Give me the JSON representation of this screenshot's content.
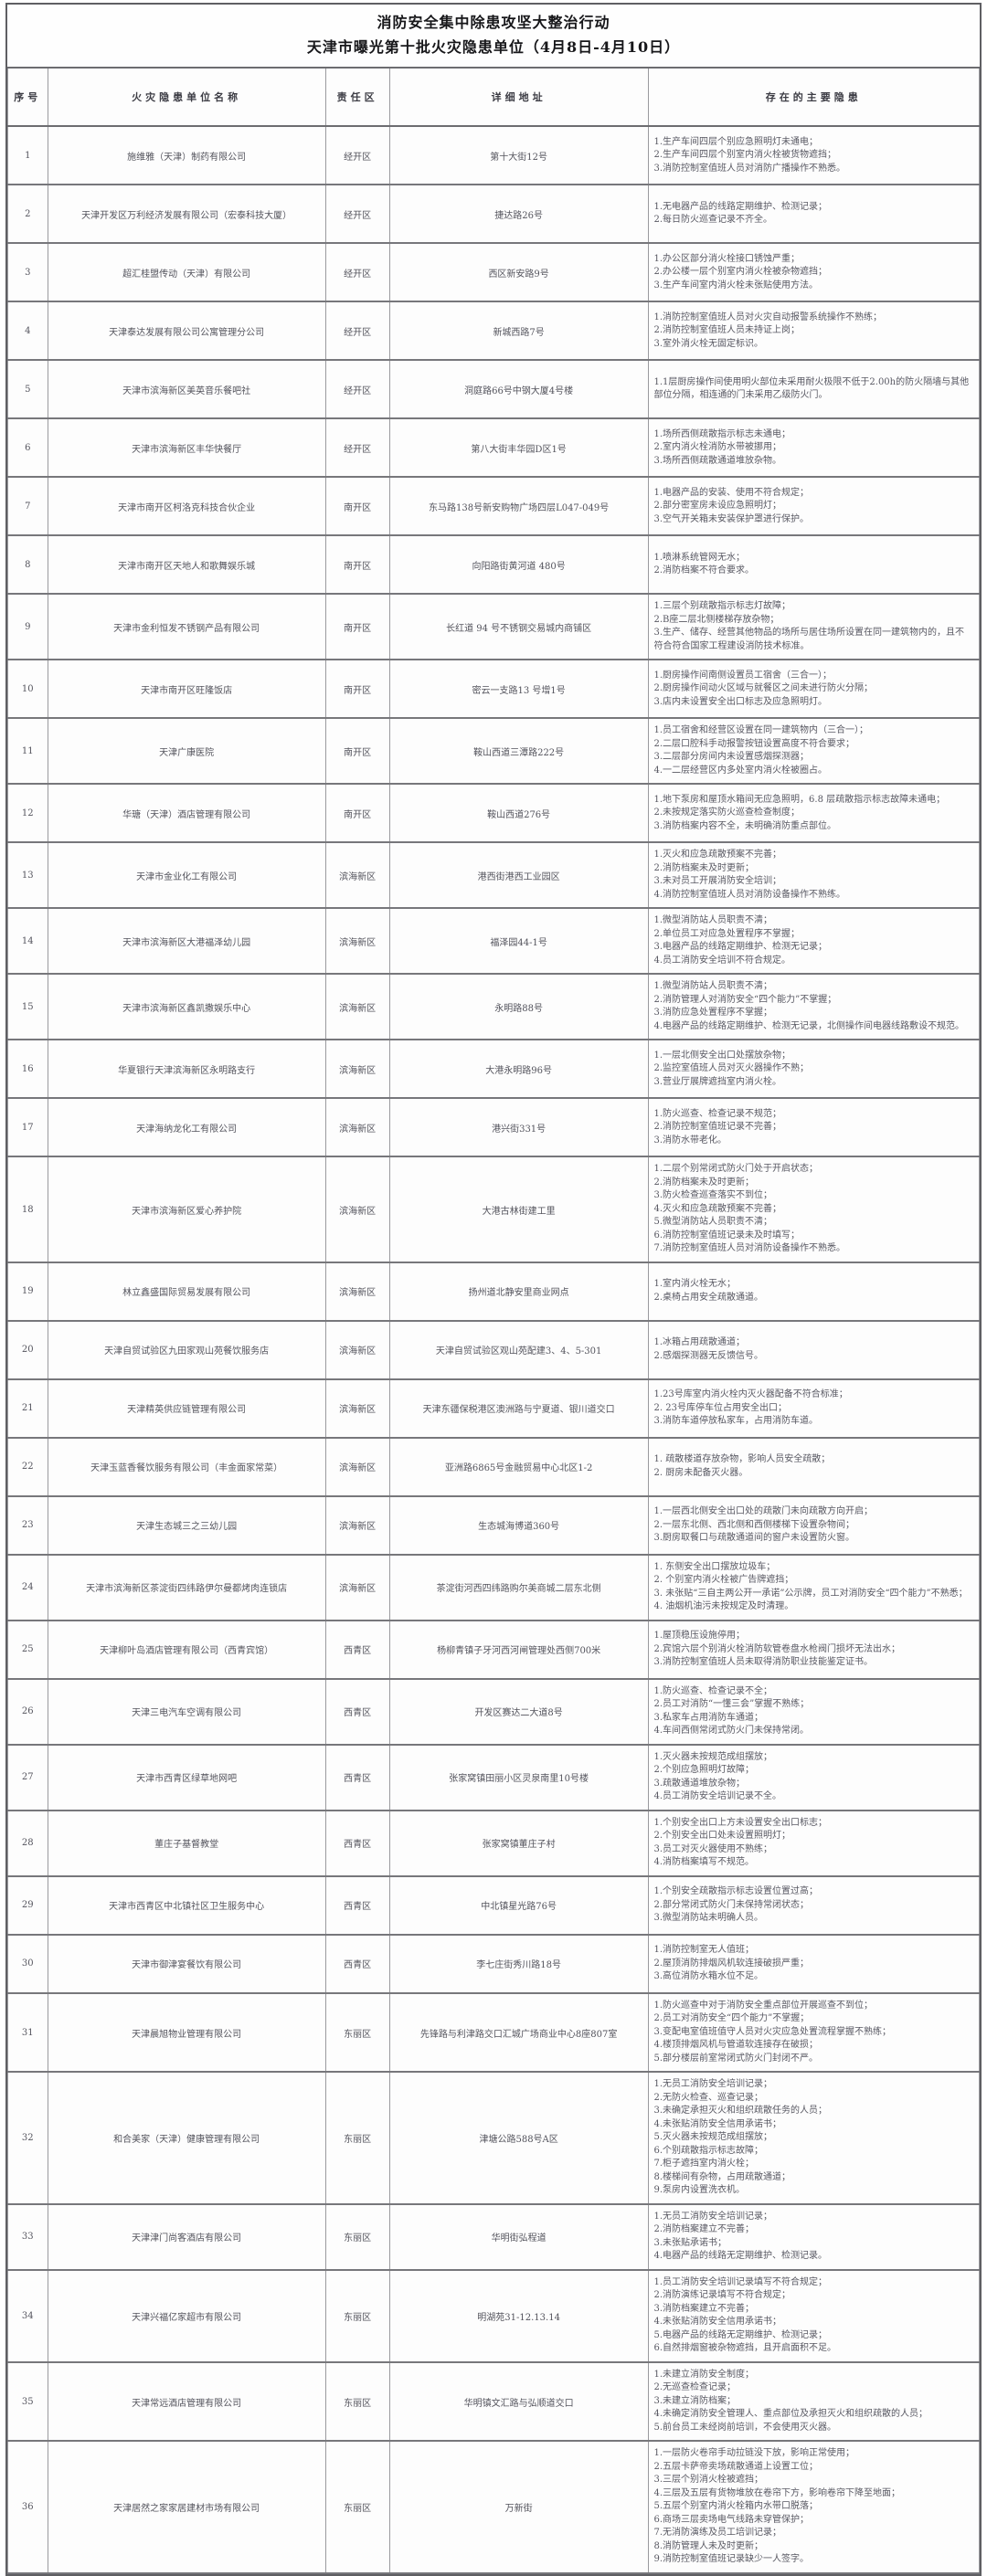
{
  "title": {
    "line1": "消防安全集中除患攻坚大整治行动",
    "line2": "天津市曝光第十批火灾隐患单位（4月8日-4月10日）"
  },
  "table": {
    "headers": [
      "序号",
      "火灾隐患单位名称",
      "责任区",
      "详细地址",
      "存在的主要隐患"
    ],
    "rows": [
      {
        "no": "1",
        "name": "施维雅（天津）制药有限公司",
        "district": "经开区",
        "address": "第十大街12号",
        "hazards": [
          "1.生产车间四层个别应急照明灯未通电；",
          "2.生产车间四层个别室内消火栓被货物遮挡；",
          "3.消防控制室值班人员对消防广播操作不熟悉。"
        ]
      },
      {
        "no": "2",
        "name": "天津开发区万利经济发展有限公司（宏泰科技大厦）",
        "district": "经开区",
        "address": "捷达路26号",
        "hazards": [
          "1.无电器产品的线路定期维护、检测记录；",
          "2.每日防火巡查记录不齐全。"
        ]
      },
      {
        "no": "3",
        "name": "超汇桂盟传动（天津）有限公司",
        "district": "经开区",
        "address": "西区新安路9号",
        "hazards": [
          "1.办公区部分消火栓接口锈蚀严重；",
          "2.办公楼一层个别室内消火栓被杂物遮挡；",
          "3.生产车间室内消火栓未张贴使用方法。"
        ]
      },
      {
        "no": "4",
        "name": "天津泰达发展有限公司公寓管理分公司",
        "district": "经开区",
        "address": "新城西路7号",
        "hazards": [
          "1.消防控制室值班人员对火灾自动报警系统操作不熟练；",
          "2.消防控制室值班人员未持证上岗；",
          "3.室外消火栓无固定标识。"
        ]
      },
      {
        "no": "5",
        "name": "天津市滨海新区美英音乐餐吧社",
        "district": "经开区",
        "address": "洞庭路66号中钢大厦4号楼",
        "hazards": [
          "1.1层厨房操作间使用明火部位未采用耐火极限不低于2.00h的防火隔墙与其他部位分隔，相连通的门未采用乙级防火门。"
        ]
      },
      {
        "no": "6",
        "name": "天津市滨海新区丰华快餐厅",
        "district": "经开区",
        "address": "第八大街丰华园D区1号",
        "hazards": [
          "1.场所西侧疏散指示标志未通电；",
          "2.室内消火栓消防水带被挪用；",
          "3.场所西侧疏散通道堆放杂物。"
        ]
      },
      {
        "no": "7",
        "name": "天津市南开区柯洛克科技合伙企业",
        "district": "南开区",
        "address": "东马路138号新安购物广场四层L047-049号",
        "hazards": [
          "1.电器产品的安装、使用不符合规定；",
          "2.部分密室房未设应急照明灯；",
          "3.空气开关箱未安装保护罩进行保护。"
        ]
      },
      {
        "no": "8",
        "name": "天津市南开区天地人和歌舞娱乐城",
        "district": "南开区",
        "address": "向阳路街黄河道 480号",
        "hazards": [
          "1.喷淋系统管网无水；",
          "2.消防档案不符合要求。"
        ]
      },
      {
        "no": "9",
        "name": "天津市金利恒发不锈钢产品有限公司",
        "district": "南开区",
        "address": "长红道 94 号不锈钢交易城内商铺区",
        "hazards": [
          "1.三层个别疏散指示标志灯故障；",
          "2.B座二层北侧楼梯存放杂物；",
          "3.生产、储存、经营其他物品的场所与居住场所设置在同一建筑物内的，且不符合符合国家工程建设消防技术标准。"
        ]
      },
      {
        "no": "10",
        "name": "天津市南开区旺隆饭店",
        "district": "南开区",
        "address": "密云一支路13 号增1号",
        "hazards": [
          "1.厨房操作间南侧设置员工宿舍（三合一）；",
          "2.厨房操作间动火区域与就餐区之间未进行防火分隔；",
          "3.店内未设置安全出口标志及应急照明灯。"
        ]
      },
      {
        "no": "11",
        "name": "天津广康医院",
        "district": "南开区",
        "address": "鞍山西道三潭路222号",
        "hazards": [
          "1.员工宿舍和经营区设置在同一建筑物内（三合一）；",
          "2.二层口腔科手动报警按钮设置高度不符合要求；",
          "3.二层部分房间内未设置感烟探测器；",
          "4.一二层经营区内多处室内消火栓被圈占。"
        ]
      },
      {
        "no": "12",
        "name": "华瑭（天津）酒店管理有限公司",
        "district": "南开区",
        "address": "鞍山西道276号",
        "hazards": [
          "1.地下泵房和屋顶水箱间无应急照明，6.8 层疏散指示标志故障未通电；",
          "2.未按规定落实防火巡查检查制度；",
          "3.消防档案内容不全，未明确消防重点部位。"
        ]
      },
      {
        "no": "13",
        "name": "天津市金业化工有限公司",
        "district": "滨海新区",
        "address": "港西街港西工业园区",
        "hazards": [
          "1.灭火和应急疏散预案不完善；",
          "2.消防档案未及时更新；",
          "3.未对员工开展消防安全培训；",
          "4.消防控制室值班人员对消防设备操作不熟练。"
        ]
      },
      {
        "no": "14",
        "name": "天津市滨海新区大港福泽幼儿园",
        "district": "滨海新区",
        "address": "福泽园44-1号",
        "hazards": [
          "1.微型消防站人员职责不清；",
          "2.单位员工对应急处置程序不掌握；",
          "3.电器产品的线路定期维护、检测无记录；",
          "4.员工消防安全培训不符合规定。"
        ]
      },
      {
        "no": "15",
        "name": "天津市滨海新区鑫凯撒娱乐中心",
        "district": "滨海新区",
        "address": "永明路88号",
        "hazards": [
          "1.微型消防站人员职责不清；",
          "2.消防管理人对消防安全“四个能力”不掌握；",
          "3.消防应急处置程序不掌握；",
          "4.电器产品的线路定期维护、检测无记录，北侧操作间电器线路敷设不规范。"
        ]
      },
      {
        "no": "16",
        "name": "华夏银行天津滨海新区永明路支行",
        "district": "滨海新区",
        "address": "大港永明路96号",
        "hazards": [
          "1.一层北侧安全出口处摆放杂物；",
          "2.监控室值班人员对灭火器操作不熟；",
          "3.营业厅展牌遮挡室内消火栓。"
        ]
      },
      {
        "no": "17",
        "name": "天津海纳龙化工有限公司",
        "district": "滨海新区",
        "address": "港兴街331号",
        "hazards": [
          "1.防火巡查、检查记录不规范；",
          "2.消防控制室值班记录不完善；",
          "3.消防水带老化。"
        ]
      },
      {
        "no": "18",
        "name": "天津市滨海新区爱心养护院",
        "district": "滨海新区",
        "address": "大港古林街建工里",
        "hazards": [
          "1.二层个别常闭式防火门处于开启状态；",
          "2.消防档案未及时更新；",
          "3.防火检查巡查落实不到位；",
          "4.灭火和应急疏散预案不完善；",
          "5.微型消防站人员职责不清；",
          "6.消防控制室值班记录未及时填写；",
          "7.消防控制室值班人员对消防设备操作不熟悉。"
        ]
      },
      {
        "no": "19",
        "name": "林立鑫盛国际贸易发展有限公司",
        "district": "滨海新区",
        "address": "扬州道北静安里商业网点",
        "hazards": [
          "1.室内消火栓无水；",
          "2.桌椅占用安全疏散通道。"
        ]
      },
      {
        "no": "20",
        "name": "天津自贸试验区九田家观山苑餐饮服务店",
        "district": "滨海新区",
        "address": "天津自贸试验区观山苑配建3、4、5-301",
        "hazards": [
          "1.冰箱占用疏散通道；",
          "2.感烟探测器无反馈信号。"
        ]
      },
      {
        "no": "21",
        "name": "天津精英供应链管理有限公司",
        "district": "滨海新区",
        "address": "天津东疆保税港区澳洲路与宁夏道、银川道交口",
        "hazards": [
          "1.23号库室内消火栓内灭火器配备不符合标准；",
          "2. 23号库停车位占用安全出口；",
          "3.消防车道停放私家车，占用消防车道。"
        ]
      },
      {
        "no": "22",
        "name": "天津玉蓝香餐饮服务有限公司（丰金面家常菜）",
        "district": "滨海新区",
        "address": "亚洲路6865号金融贸易中心北区1-2",
        "hazards": [
          "1. 疏散楼道存放杂物，影响人员安全疏散；",
          "2. 厨房未配备灭火器。"
        ]
      },
      {
        "no": "23",
        "name": "天津生态城三之三幼儿园",
        "district": "滨海新区",
        "address": "生态城海博道360号",
        "hazards": [
          "1.一层西北侧安全出口处的疏散门未向疏散方向开启；",
          "2.一层东北侧、西北侧和西侧楼梯下设置杂物间；",
          "3.厨房取餐口与疏散通道间的窗户未设置防火窗。"
        ]
      },
      {
        "no": "24",
        "name": "天津市滨海新区茶淀街四纬路伊尔曼都烤肉连锁店",
        "district": "滨海新区",
        "address": "茶淀街河西四纬路购尔美商城二层东北侧",
        "hazards": [
          "1. 东侧安全出口摆放垃圾车；",
          "2. 个别室内消火栓被广告牌遮挡；",
          "3. 未张贴“三自主两公开一承诺”公示牌，员工对消防安全“四个能力”不熟悉；",
          "4. 油烟机油污未按规定及时清理。"
        ]
      },
      {
        "no": "25",
        "name": "天津柳叶岛酒店管理有限公司（西青宾馆）",
        "district": "西青区",
        "address": "杨柳青镇子牙河西河闸管理处西侧700米",
        "hazards": [
          "1.屋顶稳压设施停用；",
          "2.宾馆六层个别消火栓消防软管卷盘水枪阀门损坏无法出水；",
          "3.消防控制室值班人员未取得消防职业技能鉴定证书。"
        ]
      },
      {
        "no": "26",
        "name": "天津三电汽车空调有限公司",
        "district": "西青区",
        "address": "开发区赛达二大道8号",
        "hazards": [
          "1.防火巡查、检查记录不全；",
          "2.员工对消防“一懂三会”掌握不熟练；",
          "3.私家车占用消防车通道；",
          "4.车间西侧常闭式防火门未保持常闭。"
        ]
      },
      {
        "no": "27",
        "name": "天津市西青区绿草地网吧",
        "district": "西青区",
        "address": "张家窝镇田丽小区灵泉南里10号楼",
        "hazards": [
          "1.灭火器未按规范成组摆放；",
          "2.个别应急照明灯故障；",
          "3.疏散通道堆放杂物；",
          "4.员工消防安全培训记录不全。"
        ]
      },
      {
        "no": "28",
        "name": "董庄子基督教堂",
        "district": "西青区",
        "address": "张家窝镇董庄子村",
        "hazards": [
          "1.个别安全出口上方未设置安全出口标志；",
          "2.个别安全出口处未设置照明灯；",
          "3.员工对灭火器使用不熟练；",
          "4.消防档案填写不规范。"
        ]
      },
      {
        "no": "29",
        "name": "天津市西青区中北镇社区卫生服务中心",
        "district": "西青区",
        "address": "中北镇星光路76号",
        "hazards": [
          "1.个别安全疏散指示标志设置位置过高；",
          "2.部分常闭式防火门未保持常闭状态；",
          "3.微型消防站未明确人员。"
        ]
      },
      {
        "no": "30",
        "name": "天津市御津宴餐饮有限公司",
        "district": "西青区",
        "address": "李七庄街秀川路18号",
        "hazards": [
          "1.消防控制室无人值班；",
          "2.屋顶消防排烟风机软连接破损严重；",
          "3.高位消防水箱水位不足。"
        ]
      },
      {
        "no": "31",
        "name": "天津晨旭物业管理有限公司",
        "district": "东丽区",
        "address": "先锋路与利津路交口汇城广场商业中心8座807室",
        "hazards": [
          "1.防火巡查中对于消防安全重点部位开展巡查不到位；",
          "2.员工对消防安全“四个能力”不掌握；",
          "3.变配电室值班值守人员对火灾应急处置流程掌握不熟练；",
          "4.楼顶排烟风机与管道软连接存在破损；",
          "5.部分楼层前室常闭式防火门封闭不严。"
        ]
      },
      {
        "no": "32",
        "name": "和合美家（天津）健康管理有限公司",
        "district": "东丽区",
        "address": "津塘公路588号A区",
        "hazards": [
          "1.无员工消防安全培训记录；",
          "2.无防火检查、巡查记录；",
          "3.未确定承担灭火和组织疏散任务的人员；",
          "4.未张贴消防安全信用承诺书；",
          "5.灭火器未按规范成组摆放；",
          "6.个别疏散指示标志故障；",
          "7.柜子遮挡室内消火栓；",
          "8.楼梯间有杂物，占用疏散通道；",
          "9.泵房内设置洗衣机。"
        ]
      },
      {
        "no": "33",
        "name": "天津津门尚客酒店有限公司",
        "district": "东丽区",
        "address": "华明街弘程道",
        "hazards": [
          "1.无员工消防安全培训记录；",
          "2.消防档案建立不完善；",
          "3.未张贴承诺书；",
          "4.电器产品的线路无定期维护、检测记录。"
        ]
      },
      {
        "no": "34",
        "name": "天津兴福亿家超市有限公司",
        "district": "东丽区",
        "address": "明湖苑31-12.13.14",
        "hazards": [
          "1.员工消防安全培训记录填写不符合规定；",
          "2.消防演练记录填写不符合规定；",
          "3.消防档案建立不完善；",
          "4.未张贴消防安全信用承诺书；",
          "5.电器产品的线路无定期维护、检测记录；",
          "6.自然排烟窗被杂物遮挡，且开启面积不足。"
        ]
      },
      {
        "no": "35",
        "name": "天津常远酒店管理有限公司",
        "district": "东丽区",
        "address": "华明镇文汇路与弘顺道交口",
        "hazards": [
          "1.未建立消防安全制度；",
          "2.无巡查检查记录；",
          "3.未建立消防档案；",
          "4.未确定消防安全管理人、重点部位及承担灭火和组织疏散的人员；",
          "5.前台员工未经岗前培训，不会使用灭火器。"
        ]
      },
      {
        "no": "36",
        "name": "天津居然之家家居建材市场有限公司",
        "district": "东丽区",
        "address": "万新街",
        "hazards": [
          "1.一层防火卷帘手动拉链没下放，影响正常使用；",
          "2.五层卡萨帝卖场疏散通道上设置工位；",
          "3.三层个别消火栓被遮挡；",
          "4.三层及五层有货物堆放在卷帘下方，影响卷帘下降至地面；",
          "5.五层个别室内消火栓箱内水带口脱落；",
          "6.商场三层卖场电气线路未穿管保护；",
          "7.无消防演练及员工培训记录；",
          "8.消防管理人未及时更新；",
          "9.消防控制室值班记录缺少一人签字。"
        ]
      }
    ]
  }
}
